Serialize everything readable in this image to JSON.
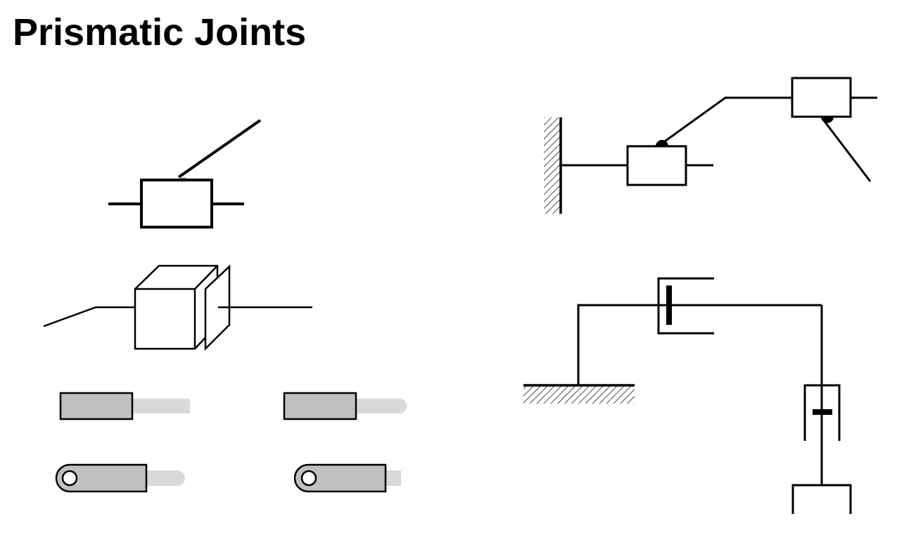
{
  "title": "Prismatic Joints",
  "colors": {
    "stroke": "#000000",
    "link_fill": "#c0c0c0",
    "extension_fill": "#d9d9d9",
    "background": "#ffffff"
  }
}
